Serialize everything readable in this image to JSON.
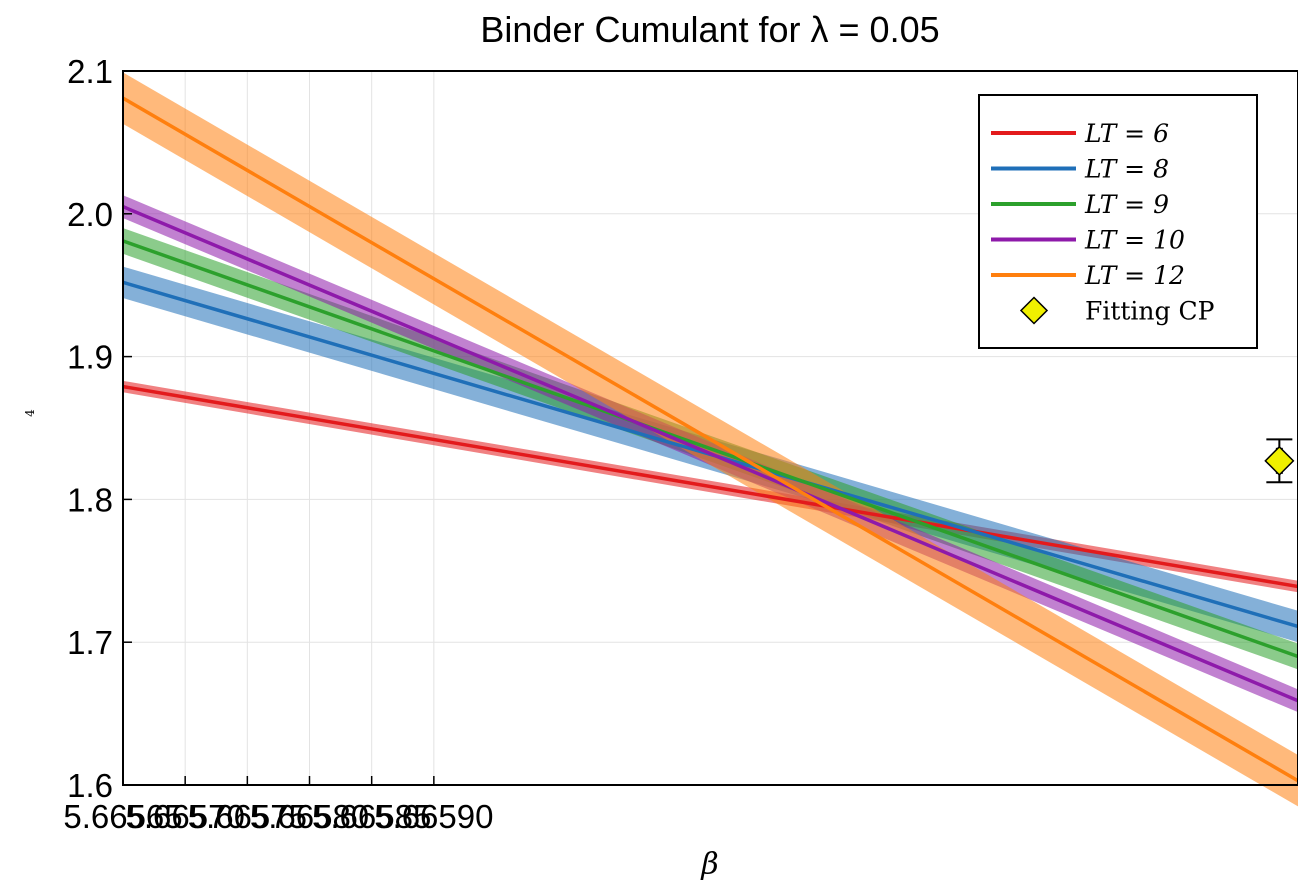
{
  "chart_data": {
    "type": "line",
    "title": "Binder Cumulant for λ = 0.05",
    "xlabel": "β",
    "ylabel": "4",
    "xlim": [
      5.66565,
      5.666595
    ],
    "ylim": [
      1.6,
      2.1
    ],
    "x_ticks": [
      5.66565,
      5.6657,
      5.66575,
      5.6658,
      5.66585,
      5.6659
    ],
    "x_tick_labels": [
      "5.66565",
      "5.66570",
      "5.66575",
      "5.66580",
      "5.66585",
      "5.66590"
    ],
    "y_ticks": [
      1.6,
      1.7,
      1.8,
      1.9,
      2.0,
      2.1
    ],
    "y_tick_labels": [
      "1.6",
      "1.7",
      "1.8",
      "1.9",
      "2.0",
      "2.1"
    ],
    "grid": true,
    "legend_position": "top-right",
    "series": [
      {
        "name": "LT = 6",
        "color": "#e31a1c",
        "x": [
          5.66565,
          5.666595
        ],
        "y": [
          1.879,
          1.739
        ],
        "band": [
          0.004,
          0.004
        ]
      },
      {
        "name": "LT = 8",
        "color": "#1f6fb8",
        "x": [
          5.66565,
          5.666595
        ],
        "y": [
          1.952,
          1.711
        ],
        "band": [
          0.011,
          0.011
        ]
      },
      {
        "name": "LT = 9",
        "color": "#2ca02c",
        "x": [
          5.66565,
          5.666595
        ],
        "y": [
          1.981,
          1.69
        ],
        "band": [
          0.009,
          0.009
        ]
      },
      {
        "name": "LT = 10",
        "color": "#8e1aaa",
        "x": [
          5.66565,
          5.666595
        ],
        "y": [
          2.005,
          1.659
        ],
        "band": [
          0.008,
          0.008
        ]
      },
      {
        "name": "LT = 12",
        "color": "#ff7f0e",
        "x": [
          5.66565,
          5.666595
        ],
        "y": [
          2.081,
          1.603
        ],
        "band": [
          0.018,
          0.018
        ]
      }
    ],
    "points": [
      {
        "name": "Fitting CP",
        "x": 5.66658,
        "y": 1.827,
        "x_err": 2e-06,
        "y_err": 0.015,
        "color": "#f0f000",
        "marker": "diamond"
      }
    ]
  }
}
